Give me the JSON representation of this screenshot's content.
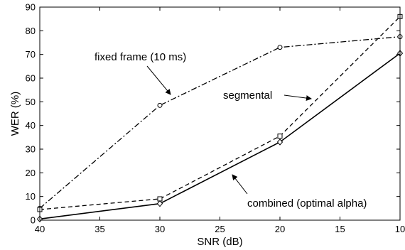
{
  "chart_data": {
    "type": "line",
    "title": "",
    "xlabel": "SNR (dB)",
    "ylabel": "WER (%)",
    "x": [
      40,
      30,
      20,
      10
    ],
    "xlim": [
      40,
      10
    ],
    "ylim": [
      0,
      90
    ],
    "xticks": [
      "40",
      "35",
      "30",
      "25",
      "20",
      "15",
      "10"
    ],
    "yticks": [
      "0",
      "10",
      "20",
      "30",
      "40",
      "50",
      "60",
      "70",
      "80",
      "90"
    ],
    "grid": false,
    "legend": "none",
    "series": [
      {
        "name": "fixed frame (10 ms)",
        "values": [
          5,
          48.5,
          73,
          77.5
        ],
        "line_style": "dash-dot",
        "marker": "circle",
        "color": "#000000"
      },
      {
        "name": "segmental",
        "values": [
          4.5,
          9,
          35.5,
          86
        ],
        "line_style": "dashed",
        "marker": "square",
        "color": "#000000"
      },
      {
        "name": "combined (optimal alpha)",
        "values": [
          0.5,
          7,
          33,
          70.5
        ],
        "line_style": "solid",
        "marker": "diamond",
        "color": "#000000"
      }
    ],
    "annotations": [
      {
        "text": "fixed frame (10 ms)",
        "series": "fixed frame (10 ms)"
      },
      {
        "text": "segmental",
        "series": "segmental"
      },
      {
        "text": "combined (optimal alpha)",
        "series": "combined (optimal alpha)"
      }
    ]
  }
}
